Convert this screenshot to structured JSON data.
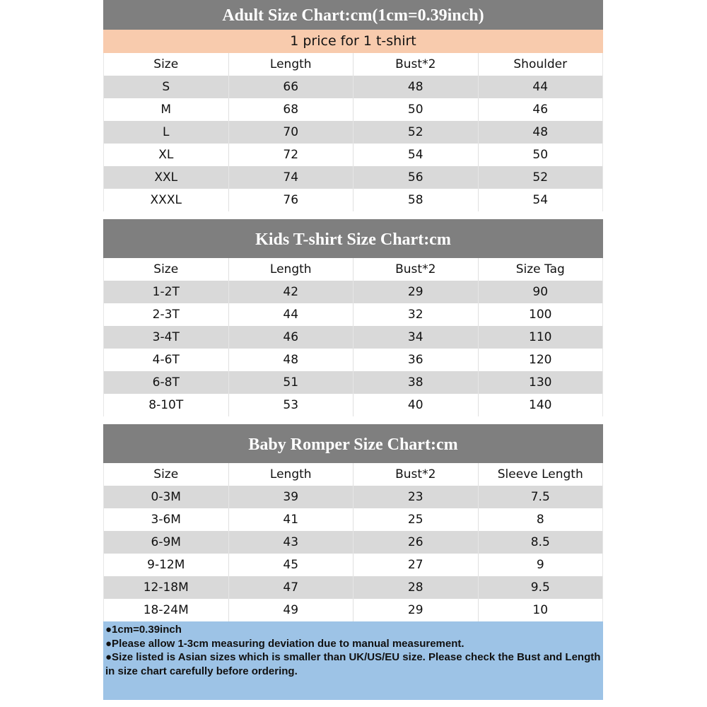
{
  "colors": {
    "title_bg": "#7f7f7f",
    "price_bg": "#f8cbad",
    "alt_row": "#d9d9d9",
    "notes_bg": "#9dc3e6"
  },
  "price_note": "1 price for 1 t-shirt",
  "tables": [
    {
      "title": "Adult Size Chart:cm(1cm=0.39inch)",
      "headers": [
        "Size",
        "Length",
        "Bust*2",
        "Shoulder"
      ],
      "rows": [
        [
          "S",
          "66",
          "48",
          "44"
        ],
        [
          "M",
          "68",
          "50",
          "46"
        ],
        [
          "L",
          "70",
          "52",
          "48"
        ],
        [
          "XL",
          "72",
          "54",
          "50"
        ],
        [
          "XXL",
          "74",
          "56",
          "52"
        ],
        [
          "XXXL",
          "76",
          "58",
          "54"
        ]
      ]
    },
    {
      "title": "Kids T-shirt Size Chart:cm",
      "headers": [
        "Size",
        "Length",
        "Bust*2",
        "Size Tag"
      ],
      "rows": [
        [
          "1-2T",
          "42",
          "29",
          "90"
        ],
        [
          "2-3T",
          "44",
          "32",
          "100"
        ],
        [
          "3-4T",
          "46",
          "34",
          "110"
        ],
        [
          "4-6T",
          "48",
          "36",
          "120"
        ],
        [
          "6-8T",
          "51",
          "38",
          "130"
        ],
        [
          "8-10T",
          "53",
          "40",
          "140"
        ]
      ]
    },
    {
      "title": "Baby Romper Size Chart:cm",
      "headers": [
        "Size",
        "Length",
        "Bust*2",
        "Sleeve Length"
      ],
      "rows": [
        [
          "0-3M",
          "39",
          "23",
          "7.5"
        ],
        [
          "3-6M",
          "41",
          "25",
          "8"
        ],
        [
          "6-9M",
          "43",
          "26",
          "8.5"
        ],
        [
          "9-12M",
          "45",
          "27",
          "9"
        ],
        [
          "12-18M",
          "47",
          "28",
          "9.5"
        ],
        [
          "18-24M",
          "49",
          "29",
          "10"
        ]
      ]
    }
  ],
  "notes": [
    "●1cm=0.39inch",
    "●Please allow 1-3cm measuring deviation due to manual measurement.",
    "●Size listed is Asian sizes which is smaller than UK/US/EU size. Please check the Bust and Length in size chart carefully before ordering."
  ]
}
